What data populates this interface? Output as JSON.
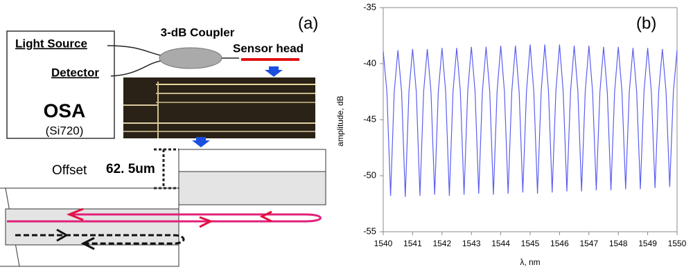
{
  "diagram": {
    "panel_label": "(a)",
    "coupler": "3-dB Coupler",
    "light_source": "Light Source",
    "detector": "Detector",
    "sensor_head": "Sensor head",
    "osa": "OSA",
    "osa_model": "(Si720)",
    "offset": "Offset",
    "offset_value": "62. 5um"
  },
  "chart_data": {
    "type": "line",
    "panel_label": "(b)",
    "x_label": "λ, nm",
    "y_label": "amplitude, dB",
    "xlim": [
      1540,
      1550
    ],
    "xticks": [
      1540,
      1541,
      1542,
      1543,
      1544,
      1545,
      1546,
      1547,
      1548,
      1549,
      1550
    ],
    "ylim": [
      -55,
      -35
    ],
    "yticks": [
      -35,
      -40,
      -45,
      -50,
      -55
    ],
    "series": [
      {
        "color": "#5a5ef0",
        "x": [
          1540,
          1540.125,
          1540.25,
          1540.375,
          1540.5,
          1540.625,
          1540.75,
          1540.875,
          1541,
          1541.125,
          1541.25,
          1541.375,
          1541.5,
          1541.625,
          1541.75,
          1541.875,
          1542,
          1542.125,
          1542.25,
          1542.375,
          1542.5,
          1542.625,
          1542.75,
          1542.875,
          1543,
          1543.125,
          1543.25,
          1543.375,
          1543.5,
          1543.625,
          1543.75,
          1543.875,
          1544,
          1544.125,
          1544.25,
          1544.375,
          1544.5,
          1544.625,
          1544.75,
          1544.875,
          1545,
          1545.125,
          1545.25,
          1545.375,
          1545.5,
          1545.625,
          1545.75,
          1545.875,
          1546,
          1546.125,
          1546.25,
          1546.375,
          1546.5,
          1546.625,
          1546.75,
          1546.875,
          1547,
          1547.125,
          1547.25,
          1547.375,
          1547.5,
          1547.625,
          1547.75,
          1547.875,
          1548,
          1548.125,
          1548.25,
          1548.375,
          1548.5,
          1548.625,
          1548.75,
          1548.875,
          1549,
          1549.125,
          1549.25,
          1549.375,
          1549.5,
          1549.625,
          1549.75,
          1549.875,
          1550
        ],
        "values": [
          -38.9,
          -42.5,
          -51.8,
          -42.5,
          -38.8,
          -42.5,
          -51.9,
          -42.5,
          -38.7,
          -42.5,
          -51.8,
          -42.5,
          -38.7,
          -42.5,
          -51.7,
          -42.5,
          -38.6,
          -42.5,
          -51.8,
          -42.5,
          -38.6,
          -42.5,
          -51.7,
          -42.5,
          -38.5,
          -42.5,
          -51.6,
          -42.5,
          -38.5,
          -42.5,
          -51.7,
          -42.5,
          -38.4,
          -42.5,
          -51.6,
          -42.5,
          -38.4,
          -42.5,
          -51.5,
          -42.5,
          -38.3,
          -42.5,
          -51.6,
          -42.5,
          -38.3,
          -42.5,
          -51.5,
          -42.5,
          -38.3,
          -42.5,
          -51.4,
          -42.5,
          -38.4,
          -42.5,
          -51.4,
          -42.5,
          -38.4,
          -42.5,
          -51.3,
          -42.5,
          -38.5,
          -42.5,
          -51.3,
          -42.5,
          -38.5,
          -42.5,
          -51.2,
          -42.5,
          -38.6,
          -42.5,
          -51.2,
          -42.5,
          -38.6,
          -42.5,
          -51.1,
          -42.5,
          -38.7,
          -42.5,
          -51.0,
          -42.5,
          -38.8
        ]
      }
    ]
  }
}
